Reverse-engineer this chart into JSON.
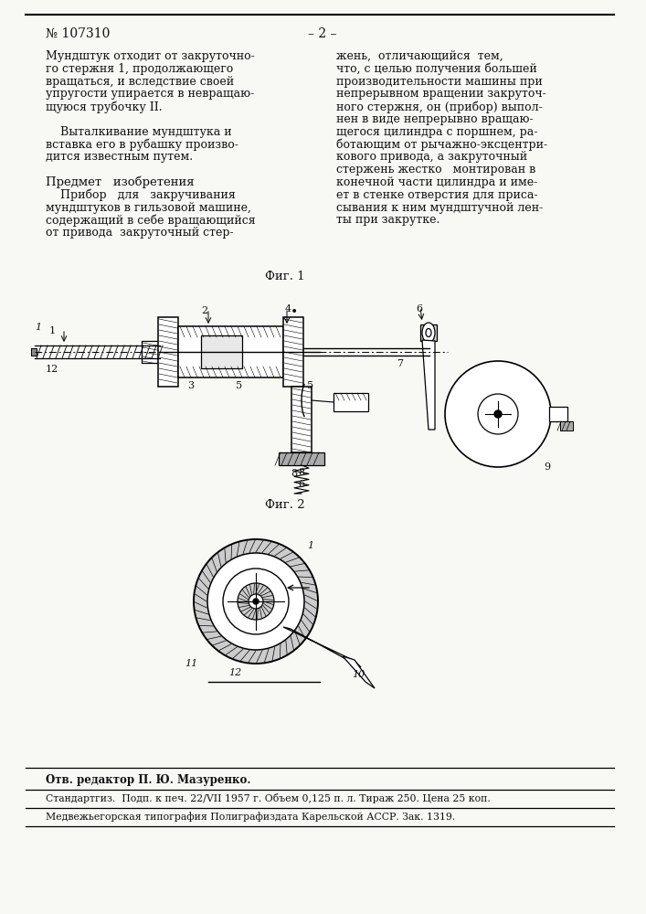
{
  "page_color": "#f8f8f4",
  "title_left": "№ 107310",
  "title_center": "– 2 –",
  "col1_lines": [
    "Мундштук отходит от закруточно-",
    "го стержня 1, продолжающего",
    "вращаться, и вследствие своей",
    "упругости упирается в невращаю-",
    "щуюся трубочку II.",
    "",
    "    Выталкивание мундштука и",
    "вставка его в рубашку произво-",
    "дится известным путем.",
    "",
    "Предмет   изобретения",
    "    Прибор   для   закручивания",
    "мундштуков в гильзовой машине,",
    "содержащий в себе вращающийся",
    "от привода  закруточный стер-"
  ],
  "col2_lines": [
    "жень,  отличающийся  тем,",
    "что, с целью получения большей",
    "производительности машины при",
    "непрерывном вращении закруточ-",
    "ного стержня, он (прибор) выпол-",
    "нен в виде непрерывно вращаю-",
    "щегося цилиндра с поршнем, ра-",
    "ботающим от рычажно-эксцентри-",
    "кового привода, а закруточный",
    "стержень жестко   монтирован в",
    "конечной части цилиндра и име-",
    "ет в стенке отверстия для приса-",
    "сывания к ним мундштучной лен-",
    "ты при закрутке."
  ],
  "fig1_label": "Фиг. 1",
  "fig2_label": "Фиг. 2",
  "footer_editor": "Отв. редактор П. Ю. Мазуренко.",
  "footer_line1": "Стандартгиз.  Подп. к печ. 22/VII 1957 г. Объем 0,125 п. л. Тираж 250. Цена 25 коп.",
  "footer_line2": "Медвежьегорская типография Полиграфиздата Карельской АССР. Зак. 1319."
}
